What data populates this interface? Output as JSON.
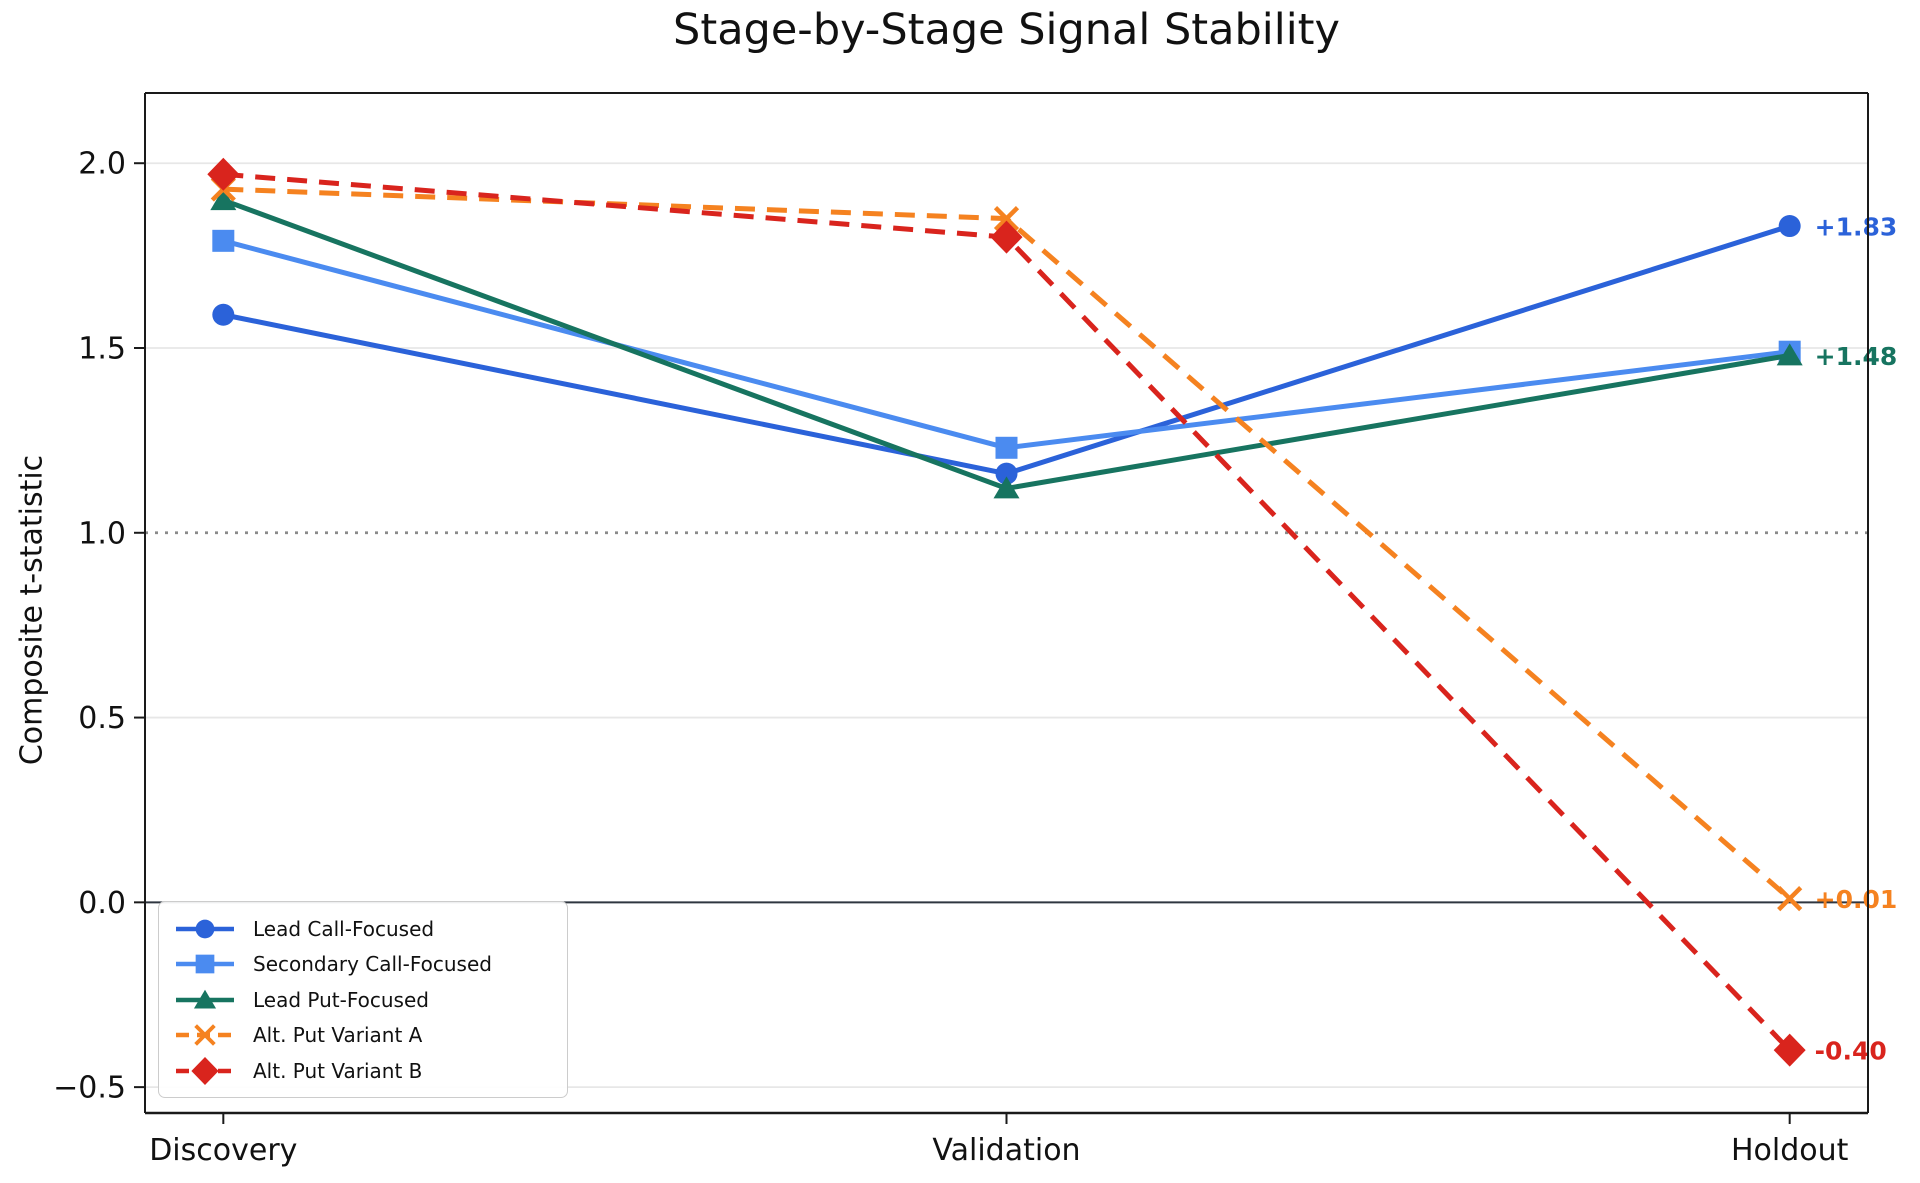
{
  "title": "Stage-by-Stage Signal Stability",
  "axes": {
    "ylabel": "Composite t-statistic"
  },
  "chart_data": {
    "type": "line",
    "title": "Stage-by-Stage Signal Stability",
    "xlabel": "",
    "ylabel": "Composite t-statistic",
    "categories": [
      "Discovery",
      "Validation",
      "Holdout"
    ],
    "series": [
      {
        "name": "Lead Call-Focused",
        "color": "#2b62d9",
        "marker": "circle",
        "line_style": "solid",
        "values": [
          1.59,
          1.16,
          1.83
        ],
        "end_label": "+1.83"
      },
      {
        "name": "Secondary Call-Focused",
        "color": "#4b8bf0",
        "marker": "square",
        "line_style": "solid",
        "values": [
          1.79,
          1.23,
          1.49
        ],
        "end_label": null
      },
      {
        "name": "Lead Put-Focused",
        "color": "#177460",
        "marker": "triangle",
        "line_style": "solid",
        "values": [
          1.9,
          1.12,
          1.48
        ],
        "end_label": "+1.48"
      },
      {
        "name": "Alt. Put Variant A",
        "color": "#f58220",
        "marker": "x",
        "line_style": "dashed",
        "values": [
          1.93,
          1.85,
          0.01
        ],
        "end_label": "+0.01"
      },
      {
        "name": "Alt. Put Variant B",
        "color": "#d9241d",
        "marker": "diamond",
        "line_style": "dashed",
        "values": [
          1.97,
          1.8,
          -0.4
        ],
        "end_label": "-0.40"
      }
    ],
    "yticks": [
      {
        "value": 2.0,
        "label": "2.0"
      },
      {
        "value": 1.5,
        "label": "1.5"
      },
      {
        "value": 1.0,
        "label": "1.0"
      },
      {
        "value": 0.5,
        "label": "0.5"
      },
      {
        "value": 0.0,
        "label": "0.0"
      },
      {
        "value": -0.5,
        "label": "−0.5"
      }
    ],
    "ylim": [
      -0.57,
      2.19
    ],
    "xlim": [
      -0.1,
      2.1
    ],
    "grid": true,
    "grid_ticks": [
      2.0,
      1.5,
      0.5,
      -0.5
    ],
    "reference_lines": [
      {
        "y": 1.0,
        "style": "dotted",
        "color": "#8a8a8a"
      },
      {
        "y": 0.0,
        "style": "solid",
        "color": "#2f3640"
      }
    ],
    "legend_position": "lower left"
  }
}
